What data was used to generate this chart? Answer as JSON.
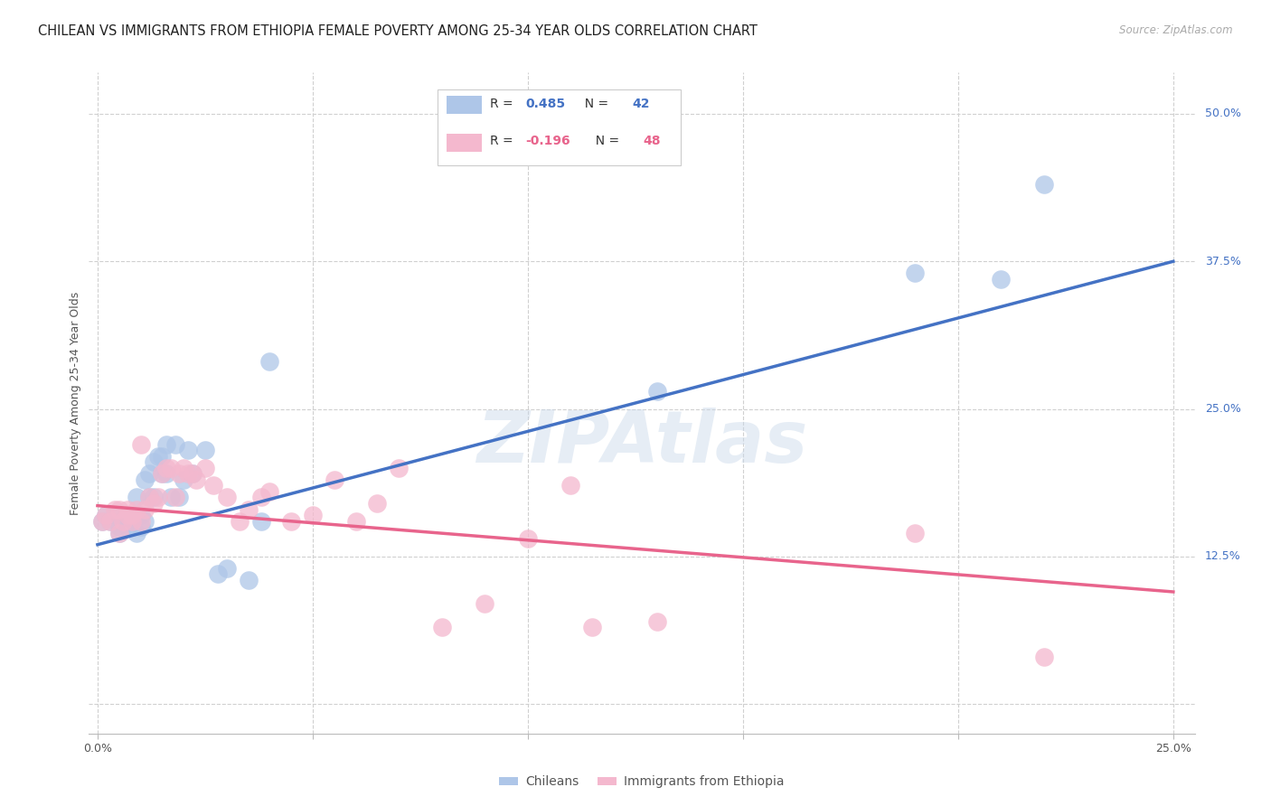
{
  "title": "CHILEAN VS IMMIGRANTS FROM ETHIOPIA FEMALE POVERTY AMONG 25-34 YEAR OLDS CORRELATION CHART",
  "source": "Source: ZipAtlas.com",
  "ylabel": "Female Poverty Among 25-34 Year Olds",
  "xlim": [
    -0.002,
    0.255
  ],
  "ylim": [
    -0.025,
    0.535
  ],
  "xticks": [
    0.0,
    0.05,
    0.1,
    0.15,
    0.2,
    0.25
  ],
  "yticks_right": [
    0.0,
    0.125,
    0.25,
    0.375,
    0.5
  ],
  "ytick_labels_right": [
    "",
    "12.5%",
    "25.0%",
    "37.5%",
    "50.0%"
  ],
  "xtick_labels": [
    "0.0%",
    "",
    "",
    "",
    "",
    "25.0%"
  ],
  "blue_color": "#aec6e8",
  "pink_color": "#f4b8ce",
  "blue_line_color": "#4472c4",
  "pink_line_color": "#e8648c",
  "blue_scatter_x": [
    0.001,
    0.002,
    0.003,
    0.004,
    0.005,
    0.005,
    0.006,
    0.007,
    0.007,
    0.008,
    0.008,
    0.009,
    0.009,
    0.01,
    0.01,
    0.011,
    0.011,
    0.012,
    0.012,
    0.013,
    0.013,
    0.014,
    0.015,
    0.015,
    0.016,
    0.016,
    0.017,
    0.018,
    0.019,
    0.02,
    0.021,
    0.022,
    0.025,
    0.028,
    0.03,
    0.035,
    0.038,
    0.04,
    0.13,
    0.19,
    0.21,
    0.22
  ],
  "blue_scatter_y": [
    0.155,
    0.16,
    0.155,
    0.16,
    0.145,
    0.15,
    0.155,
    0.15,
    0.155,
    0.155,
    0.16,
    0.145,
    0.175,
    0.15,
    0.16,
    0.155,
    0.19,
    0.175,
    0.195,
    0.175,
    0.205,
    0.21,
    0.195,
    0.21,
    0.195,
    0.22,
    0.175,
    0.22,
    0.175,
    0.19,
    0.215,
    0.195,
    0.215,
    0.11,
    0.115,
    0.105,
    0.155,
    0.29,
    0.265,
    0.365,
    0.36,
    0.44
  ],
  "pink_scatter_x": [
    0.001,
    0.002,
    0.003,
    0.004,
    0.005,
    0.005,
    0.006,
    0.007,
    0.007,
    0.008,
    0.008,
    0.009,
    0.01,
    0.01,
    0.011,
    0.012,
    0.013,
    0.014,
    0.015,
    0.016,
    0.017,
    0.018,
    0.019,
    0.02,
    0.021,
    0.022,
    0.023,
    0.025,
    0.027,
    0.03,
    0.033,
    0.035,
    0.038,
    0.04,
    0.045,
    0.05,
    0.055,
    0.06,
    0.065,
    0.07,
    0.08,
    0.09,
    0.1,
    0.11,
    0.115,
    0.13,
    0.19,
    0.22
  ],
  "pink_scatter_y": [
    0.155,
    0.16,
    0.155,
    0.165,
    0.145,
    0.165,
    0.155,
    0.16,
    0.165,
    0.155,
    0.16,
    0.165,
    0.155,
    0.22,
    0.165,
    0.175,
    0.17,
    0.175,
    0.195,
    0.2,
    0.2,
    0.175,
    0.195,
    0.2,
    0.195,
    0.195,
    0.19,
    0.2,
    0.185,
    0.175,
    0.155,
    0.165,
    0.175,
    0.18,
    0.155,
    0.16,
    0.19,
    0.155,
    0.17,
    0.2,
    0.065,
    0.085,
    0.14,
    0.185,
    0.065,
    0.07,
    0.145,
    0.04
  ],
  "blue_trend_x": [
    0.0,
    0.25
  ],
  "blue_trend_y": [
    0.135,
    0.375
  ],
  "pink_trend_x": [
    0.0,
    0.25
  ],
  "pink_trend_y": [
    0.168,
    0.095
  ],
  "grid_color": "#d0d0d0",
  "bg_color": "#ffffff",
  "title_fontsize": 10.5,
  "axis_fontsize": 9,
  "tick_fontsize": 9
}
